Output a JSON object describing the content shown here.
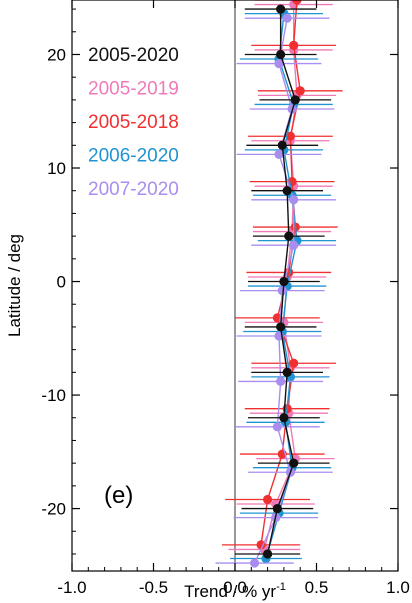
{
  "chart_data": {
    "type": "line",
    "panel_label": "(e)",
    "xlabel_main": "Trend / % yr",
    "xlabel_sup": "-1",
    "ylabel": "Latitude / deg",
    "xlim": [
      -1.0,
      1.0
    ],
    "ylim": [
      -25.5,
      24.8
    ],
    "xticks": [
      -1.0,
      -0.5,
      0.0,
      0.5,
      1.0
    ],
    "xtick_labels": [
      "-1.0",
      "-0.5",
      "0.0",
      "0.5",
      "1.0"
    ],
    "yticks": [
      -20,
      -10,
      0,
      10,
      20
    ],
    "ytick_labels": [
      "-20",
      "-10",
      "0",
      "10",
      "20"
    ],
    "grid": false,
    "legend_placement": "top-left",
    "series": [
      {
        "name": "2005-2020",
        "color": "#111111",
        "lat": [
          24,
          20,
          16,
          12,
          8,
          4,
          0,
          -4,
          -8,
          -12,
          -16,
          -20,
          -24
        ],
        "trend": [
          0.28,
          0.28,
          0.37,
          0.29,
          0.32,
          0.33,
          0.3,
          0.28,
          0.32,
          0.3,
          0.36,
          0.26,
          0.2
        ],
        "err": [
          0.22,
          0.22,
          0.22,
          0.22,
          0.22,
          0.22,
          0.22,
          0.22,
          0.22,
          0.22,
          0.22,
          0.22,
          0.2
        ]
      },
      {
        "name": "2005-2019",
        "color": "#f07ab8",
        "lat": [
          24.4,
          20.4,
          16.4,
          12.4,
          8.4,
          4.4,
          0.4,
          -3.6,
          -7.6,
          -11.6,
          -15.6,
          -19.6,
          -23.6
        ],
        "trend": [
          0.36,
          0.36,
          0.38,
          0.34,
          0.36,
          0.35,
          0.32,
          0.3,
          0.34,
          0.33,
          0.37,
          0.25,
          0.18
        ],
        "err": [
          0.24,
          0.24,
          0.24,
          0.24,
          0.24,
          0.24,
          0.24,
          0.24,
          0.24,
          0.24,
          0.24,
          0.24,
          0.22
        ]
      },
      {
        "name": "2005-2018",
        "color": "#f03030",
        "lat": [
          24.8,
          20.8,
          16.8,
          12.8,
          8.8,
          4.8,
          0.8,
          -3.2,
          -7.2,
          -11.2,
          -15.2,
          -19.2,
          -23.2
        ],
        "trend": [
          0.38,
          0.36,
          0.4,
          0.34,
          0.35,
          0.37,
          0.33,
          0.26,
          0.36,
          0.32,
          0.29,
          0.2,
          0.16
        ],
        "err": [
          0.26,
          0.26,
          0.26,
          0.26,
          0.26,
          0.26,
          0.26,
          0.26,
          0.26,
          0.26,
          0.26,
          0.26,
          0.24
        ]
      },
      {
        "name": "2006-2020",
        "color": "#2094d0",
        "lat": [
          23.6,
          19.6,
          15.6,
          11.6,
          7.6,
          3.6,
          -0.4,
          -4.4,
          -8.4,
          -12.4,
          -16.4,
          -20.4,
          -24.4
        ],
        "trend": [
          0.3,
          0.27,
          0.36,
          0.3,
          0.35,
          0.38,
          0.32,
          0.29,
          0.34,
          0.31,
          0.35,
          0.27,
          0.19
        ],
        "err": [
          0.24,
          0.24,
          0.24,
          0.24,
          0.24,
          0.24,
          0.24,
          0.24,
          0.24,
          0.24,
          0.24,
          0.24,
          0.22
        ]
      },
      {
        "name": "2007-2020",
        "color": "#a98ef0",
        "lat": [
          23.2,
          19.2,
          15.2,
          11.2,
          7.2,
          3.2,
          -0.8,
          -4.8,
          -8.8,
          -12.8,
          -16.8,
          -20.8,
          -24.8
        ],
        "trend": [
          0.32,
          0.27,
          0.35,
          0.27,
          0.36,
          0.36,
          0.29,
          0.27,
          0.28,
          0.26,
          0.34,
          0.25,
          0.12
        ],
        "err": [
          0.26,
          0.26,
          0.26,
          0.26,
          0.26,
          0.26,
          0.26,
          0.26,
          0.26,
          0.26,
          0.26,
          0.26,
          0.24
        ]
      }
    ]
  }
}
